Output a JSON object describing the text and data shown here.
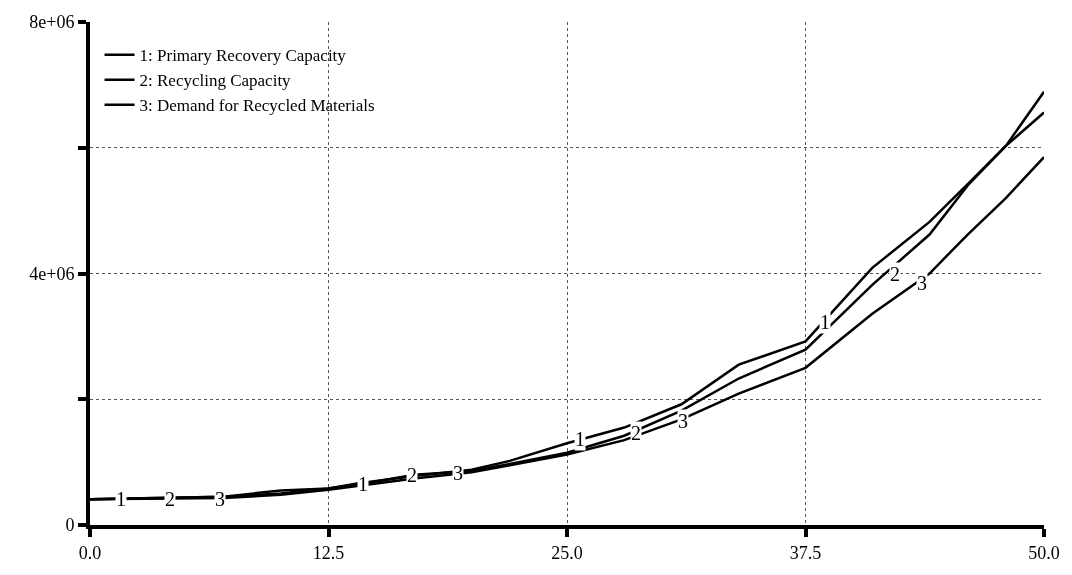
{
  "chart_data": {
    "type": "line",
    "x": [
      0,
      7,
      10,
      12.5,
      14,
      17,
      20,
      22,
      25,
      28,
      31,
      34,
      37.5,
      41,
      44,
      46,
      48,
      50
    ],
    "series": [
      {
        "name": "1: Primary Recovery Capacity",
        "color": "#000000",
        "values": [
          410000,
          450000,
          550000,
          580000,
          660000,
          780000,
          880000,
          1020000,
          1300000,
          1550000,
          1920000,
          2550000,
          2920000,
          4090000,
          4820000,
          5420000,
          6030000,
          6890000
        ]
      },
      {
        "name": "2: Recycling Capacity",
        "color": "#000000",
        "values": [
          410000,
          450000,
          500000,
          580000,
          640000,
          800000,
          860000,
          970000,
          1150000,
          1420000,
          1820000,
          2330000,
          2790000,
          3820000,
          4620000,
          5400000,
          6030000,
          6560000
        ]
      },
      {
        "name": "3: Demand for Recycled Materials",
        "color": "#000000",
        "values": [
          410000,
          430000,
          480000,
          560000,
          620000,
          740000,
          840000,
          950000,
          1120000,
          1350000,
          1680000,
          2090000,
          2500000,
          3360000,
          4000000,
          4620000,
          5200000,
          5850000
        ]
      }
    ],
    "xlim": [
      0,
      50
    ],
    "xticks": [
      {
        "value": 0,
        "label": "0.0"
      },
      {
        "value": 12.5,
        "label": "12.5"
      },
      {
        "value": 25,
        "label": "25.0"
      },
      {
        "value": 37.5,
        "label": "37.5"
      },
      {
        "value": 50,
        "label": "50.0"
      }
    ],
    "ylim": [
      0,
      8000000
    ],
    "yticks": [
      {
        "value": 0,
        "label": "0"
      },
      {
        "value": 2000000,
        "label": null
      },
      {
        "value": 4000000,
        "label": "4e+06"
      },
      {
        "value": 6000000,
        "label": null
      },
      {
        "value": 8000000,
        "label": "8e+06"
      }
    ],
    "grid": true,
    "legend": "top left",
    "line_style": "solid",
    "annotations": [
      {
        "text": "1",
        "x": 1.6,
        "y": 410000
      },
      {
        "text": "2",
        "x": 4.2,
        "y": 410000
      },
      {
        "text": "3",
        "x": 6.8,
        "y": 420000
      },
      {
        "text": "1",
        "x": 14.3,
        "y": 650000
      },
      {
        "text": "2",
        "x": 16.9,
        "y": 790000
      },
      {
        "text": "3",
        "x": 19.3,
        "y": 830000
      },
      {
        "text": "1",
        "x": 25.7,
        "y": 1360000
      },
      {
        "text": "2",
        "x": 28.6,
        "y": 1470000
      },
      {
        "text": "3",
        "x": 31.1,
        "y": 1650000
      },
      {
        "text": "1",
        "x": 38.5,
        "y": 3230000
      },
      {
        "text": "2",
        "x": 42.2,
        "y": 4000000
      },
      {
        "text": "3",
        "x": 43.6,
        "y": 3850000
      }
    ]
  }
}
